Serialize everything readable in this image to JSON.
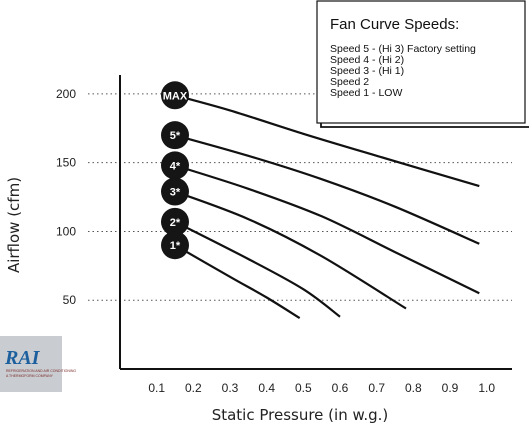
{
  "chart_data": {
    "type": "line",
    "xlabel": "Static Pressure (in w.g.)",
    "ylabel": "Airflow (cfm)",
    "xlim": [
      0.0,
      1.05
    ],
    "ylim": [
      0,
      245
    ],
    "xticks": [
      "0.1",
      "0.2",
      "0.3",
      "0.4",
      "0.5",
      "0.6",
      "0.7",
      "0.8",
      "0.9",
      "1.0"
    ],
    "xtick_values": [
      0.1,
      0.2,
      0.3,
      0.4,
      0.5,
      0.6,
      0.7,
      0.8,
      0.9,
      1.0
    ],
    "yticks": [
      "50",
      "100",
      "150",
      "200"
    ],
    "ytick_values": [
      50,
      100,
      150,
      200
    ],
    "grid": "horizontal dotted",
    "series": [
      {
        "name": "MAX",
        "points": [
          [
            0.15,
            199
          ],
          [
            0.3,
            188
          ],
          [
            0.5,
            171
          ],
          [
            0.7,
            155
          ],
          [
            0.98,
            133
          ]
        ]
      },
      {
        "name": "5*",
        "points": [
          [
            0.15,
            170
          ],
          [
            0.35,
            155
          ],
          [
            0.55,
            138
          ],
          [
            0.75,
            118
          ],
          [
            0.98,
            91
          ]
        ]
      },
      {
        "name": "4*",
        "points": [
          [
            0.15,
            148
          ],
          [
            0.35,
            131
          ],
          [
            0.55,
            111
          ],
          [
            0.75,
            85
          ],
          [
            0.98,
            55
          ]
        ]
      },
      {
        "name": "3*",
        "points": [
          [
            0.15,
            129
          ],
          [
            0.35,
            109
          ],
          [
            0.55,
            82
          ],
          [
            0.78,
            44
          ]
        ]
      },
      {
        "name": "2*",
        "points": [
          [
            0.15,
            107
          ],
          [
            0.35,
            80
          ],
          [
            0.5,
            58
          ],
          [
            0.6,
            38
          ]
        ]
      },
      {
        "name": "1*",
        "points": [
          [
            0.15,
            90
          ],
          [
            0.3,
            67
          ],
          [
            0.4,
            52
          ],
          [
            0.49,
            37
          ]
        ]
      }
    ]
  },
  "legend": {
    "title": "Fan Curve Speeds:",
    "items": [
      "Speed 5 - (Hi 3) Factory setting",
      "Speed 4 - (Hi 2)",
      "Speed 3 - (Hi 1)",
      "Speed 2",
      "Speed 1 - LOW"
    ]
  },
  "logo": {
    "text": "RAI",
    "sub1": "REFRIGERATION AND AIR CONDITIONING",
    "sub2": "A THERMOFORM COMPANY"
  },
  "colors": {
    "line": "#111111",
    "badge": "#151515",
    "logo": "#1b5f9e",
    "logo_sub": "#7a2a2a"
  }
}
